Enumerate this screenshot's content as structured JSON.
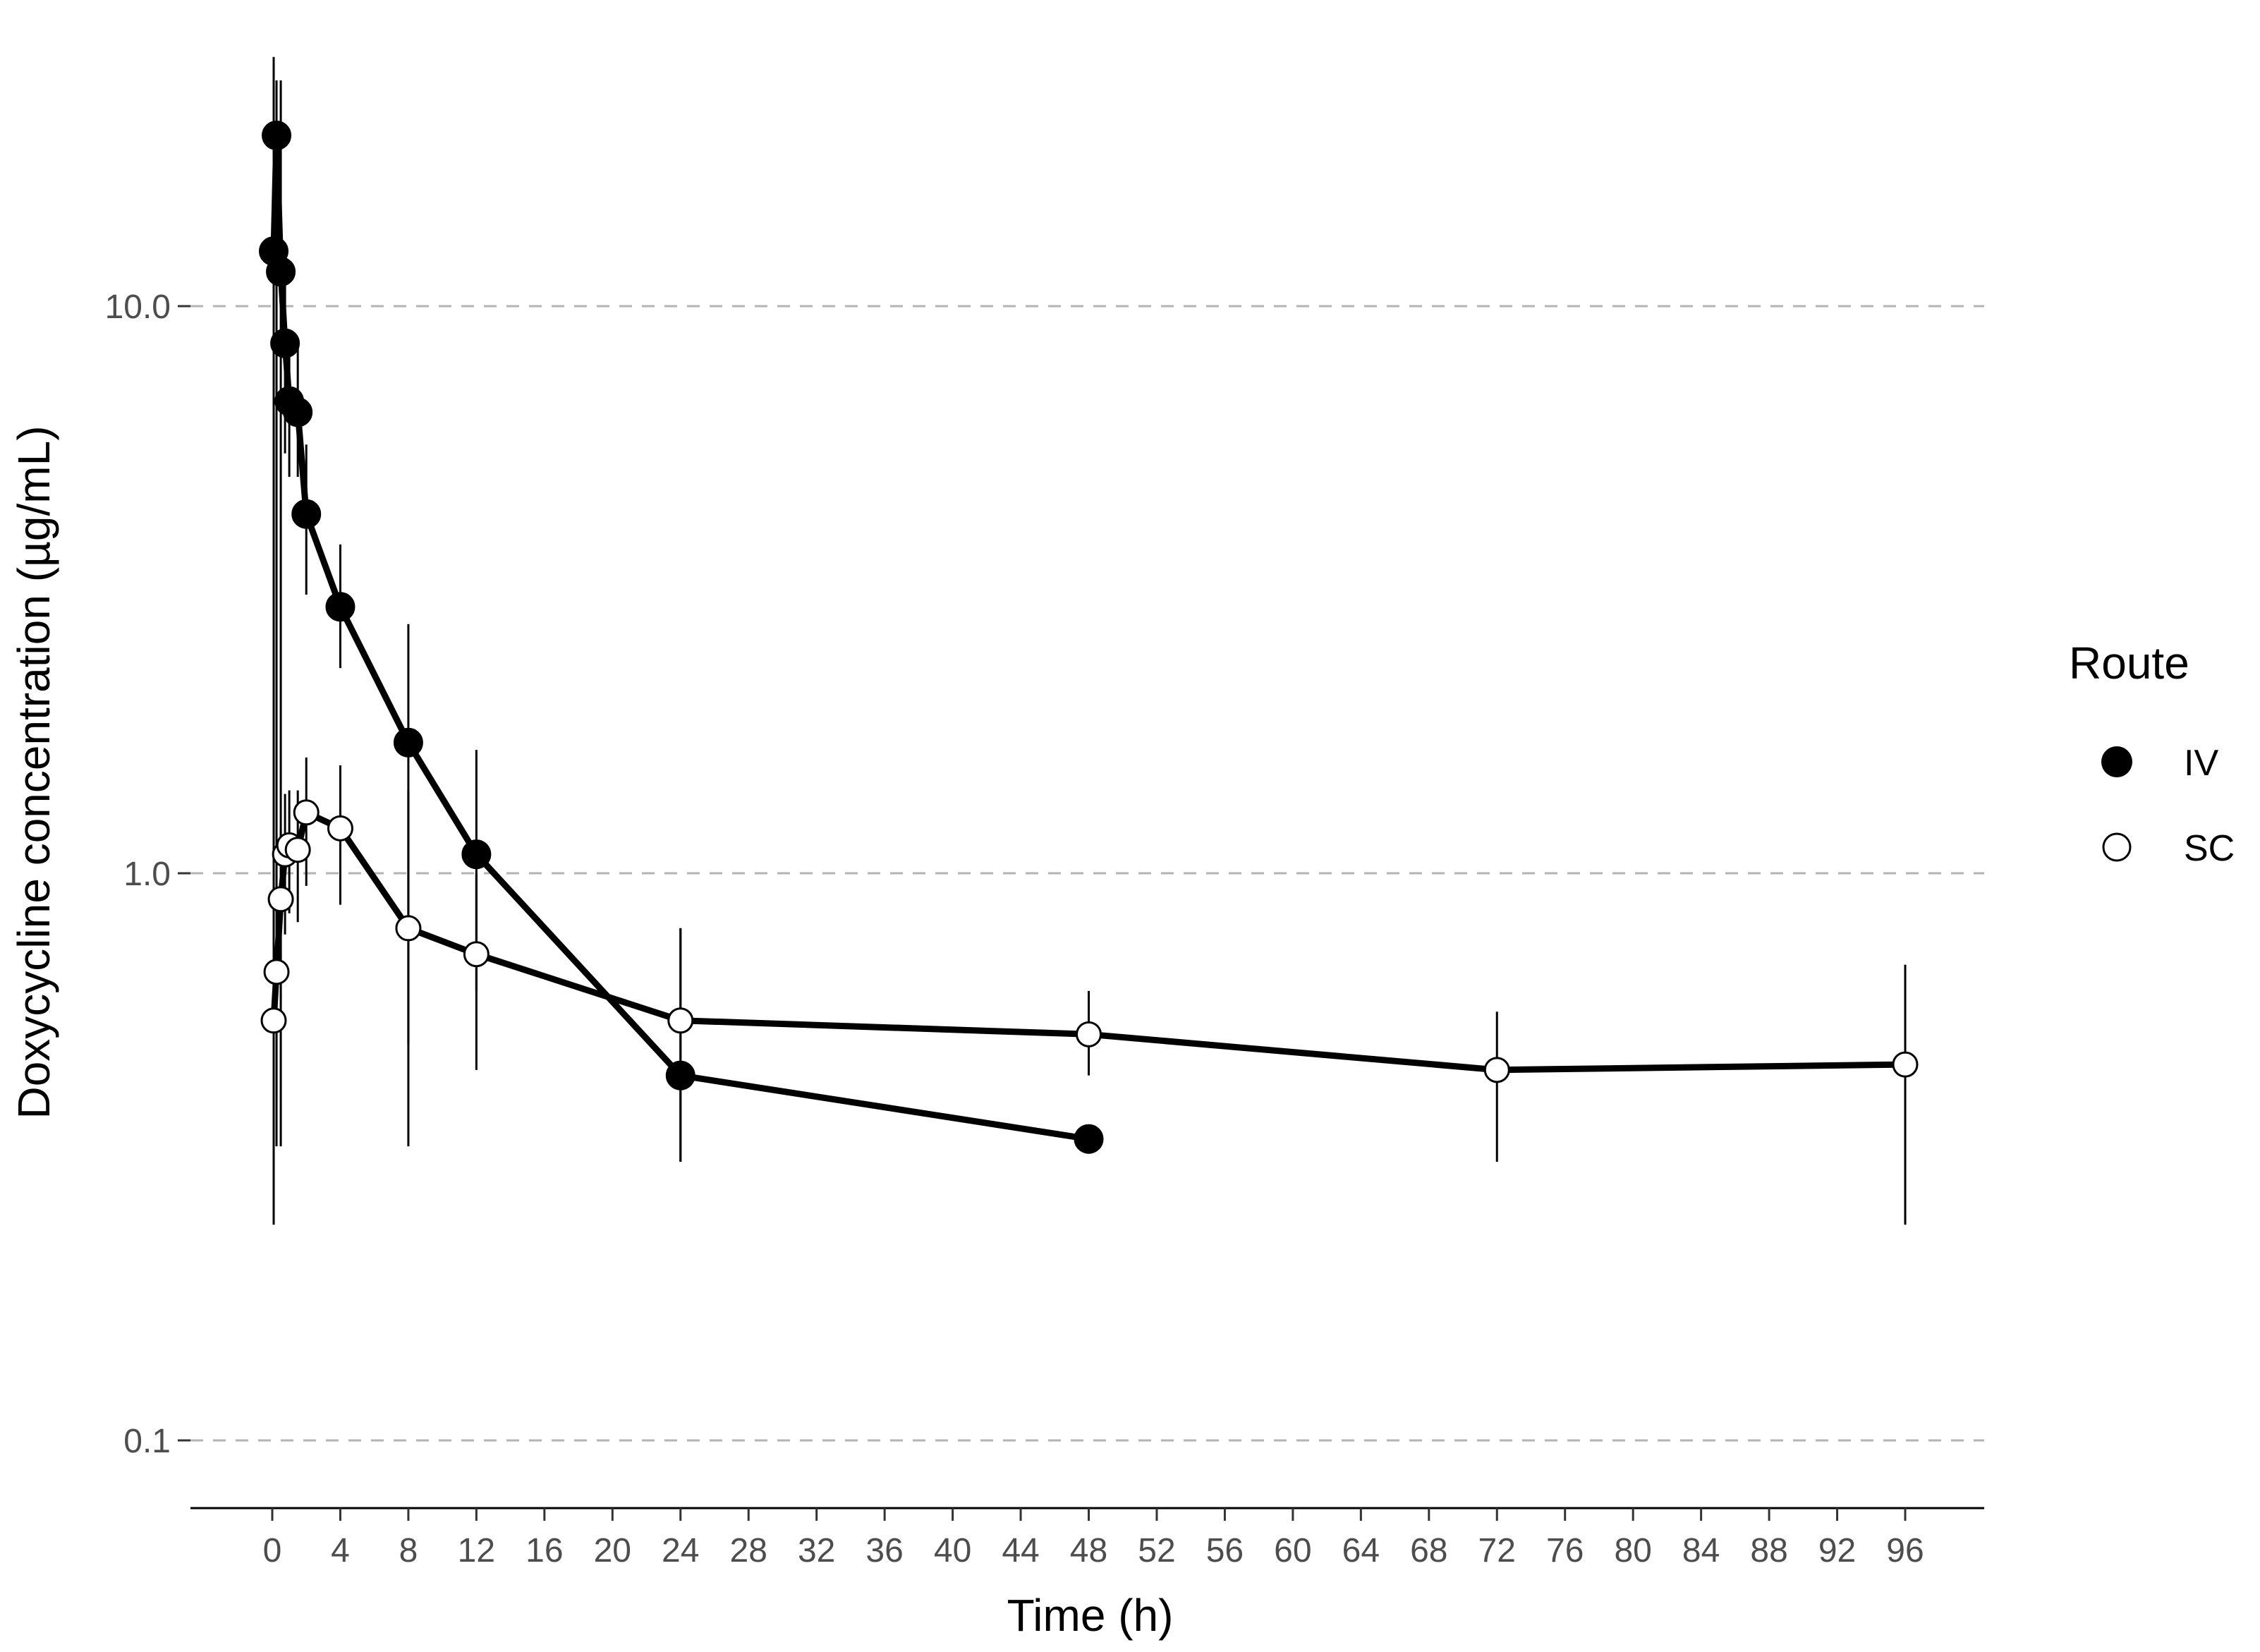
{
  "chart_data": {
    "type": "line",
    "title": "",
    "xlabel": "Time (h)",
    "ylabel": "Doxycycline concentration (µg/mL)",
    "xlim": [
      -2.3,
      100.5
    ],
    "ylim": [
      0.076,
      27.5
    ],
    "yscale": "log10",
    "x_ticks": [
      0,
      4,
      8,
      12,
      16,
      20,
      24,
      28,
      32,
      36,
      40,
      44,
      48,
      52,
      56,
      60,
      64,
      68,
      72,
      76,
      80,
      84,
      88,
      92,
      96
    ],
    "y_ticks": [
      0.1,
      1.0,
      10.0
    ],
    "y_tick_labels": [
      "0.1",
      "1.0",
      "10.0"
    ],
    "grid": "horizontal dashed major lines",
    "legend": {
      "title": "Route",
      "position": "right"
    },
    "series": [
      {
        "name": "IV",
        "marker": "filled-circle",
        "color": "#000000",
        "points": [
          {
            "x": 0.083,
            "y": 12.5,
            "ylo": 0.33,
            "yhi": 27.5
          },
          {
            "x": 0.25,
            "y": 20.0,
            "ylo": 0.33,
            "yhi": 25.0
          },
          {
            "x": 0.5,
            "y": 11.5,
            "ylo": 0.33,
            "yhi": 25.0
          },
          {
            "x": 0.75,
            "y": 8.6,
            "ylo": 5.5,
            "yhi": 12.0
          },
          {
            "x": 1.0,
            "y": 6.8,
            "ylo": 5.0,
            "yhi": 9.0
          },
          {
            "x": 1.5,
            "y": 6.5,
            "ylo": 5.0,
            "yhi": 8.5
          },
          {
            "x": 2.0,
            "y": 4.3,
            "ylo": 3.1,
            "yhi": 5.7
          },
          {
            "x": 4.0,
            "y": 2.95,
            "ylo": 2.3,
            "yhi": 3.8
          },
          {
            "x": 8.0,
            "y": 1.7,
            "ylo": 0.5,
            "yhi": 2.75
          },
          {
            "x": 12.0,
            "y": 1.08,
            "ylo": 0.62,
            "yhi": 1.65
          },
          {
            "x": 24.0,
            "y": 0.44,
            "ylo": 0.31,
            "yhi": 0.8
          },
          {
            "x": 48.0,
            "y": 0.34,
            "ylo": 0.33,
            "yhi": 0.35
          }
        ]
      },
      {
        "name": "SC",
        "marker": "open-circle",
        "color": "#000000",
        "points": [
          {
            "x": 0.083,
            "y": 0.55,
            "ylo": 0.24,
            "yhi": 1.0
          },
          {
            "x": 0.25,
            "y": 0.67,
            "ylo": 0.4,
            "yhi": 0.95
          },
          {
            "x": 0.5,
            "y": 0.9,
            "ylo": 0.6,
            "yhi": 1.2
          },
          {
            "x": 0.75,
            "y": 1.08,
            "ylo": 0.78,
            "yhi": 1.38
          },
          {
            "x": 1.0,
            "y": 1.12,
            "ylo": 0.85,
            "yhi": 1.4
          },
          {
            "x": 1.5,
            "y": 1.1,
            "ylo": 0.82,
            "yhi": 1.4
          },
          {
            "x": 2.0,
            "y": 1.28,
            "ylo": 0.95,
            "yhi": 1.6
          },
          {
            "x": 4.0,
            "y": 1.2,
            "ylo": 0.88,
            "yhi": 1.55
          },
          {
            "x": 8.0,
            "y": 0.8,
            "ylo": 0.33,
            "yhi": 1.4
          },
          {
            "x": 12.0,
            "y": 0.72,
            "ylo": 0.45,
            "yhi": 1.0
          },
          {
            "x": 24.0,
            "y": 0.55,
            "ylo": 0.31,
            "yhi": 0.8
          },
          {
            "x": 48.0,
            "y": 0.52,
            "ylo": 0.44,
            "yhi": 0.62
          },
          {
            "x": 72.0,
            "y": 0.45,
            "ylo": 0.31,
            "yhi": 0.57
          },
          {
            "x": 96.0,
            "y": 0.46,
            "ylo": 0.24,
            "yhi": 0.69
          }
        ]
      }
    ]
  }
}
